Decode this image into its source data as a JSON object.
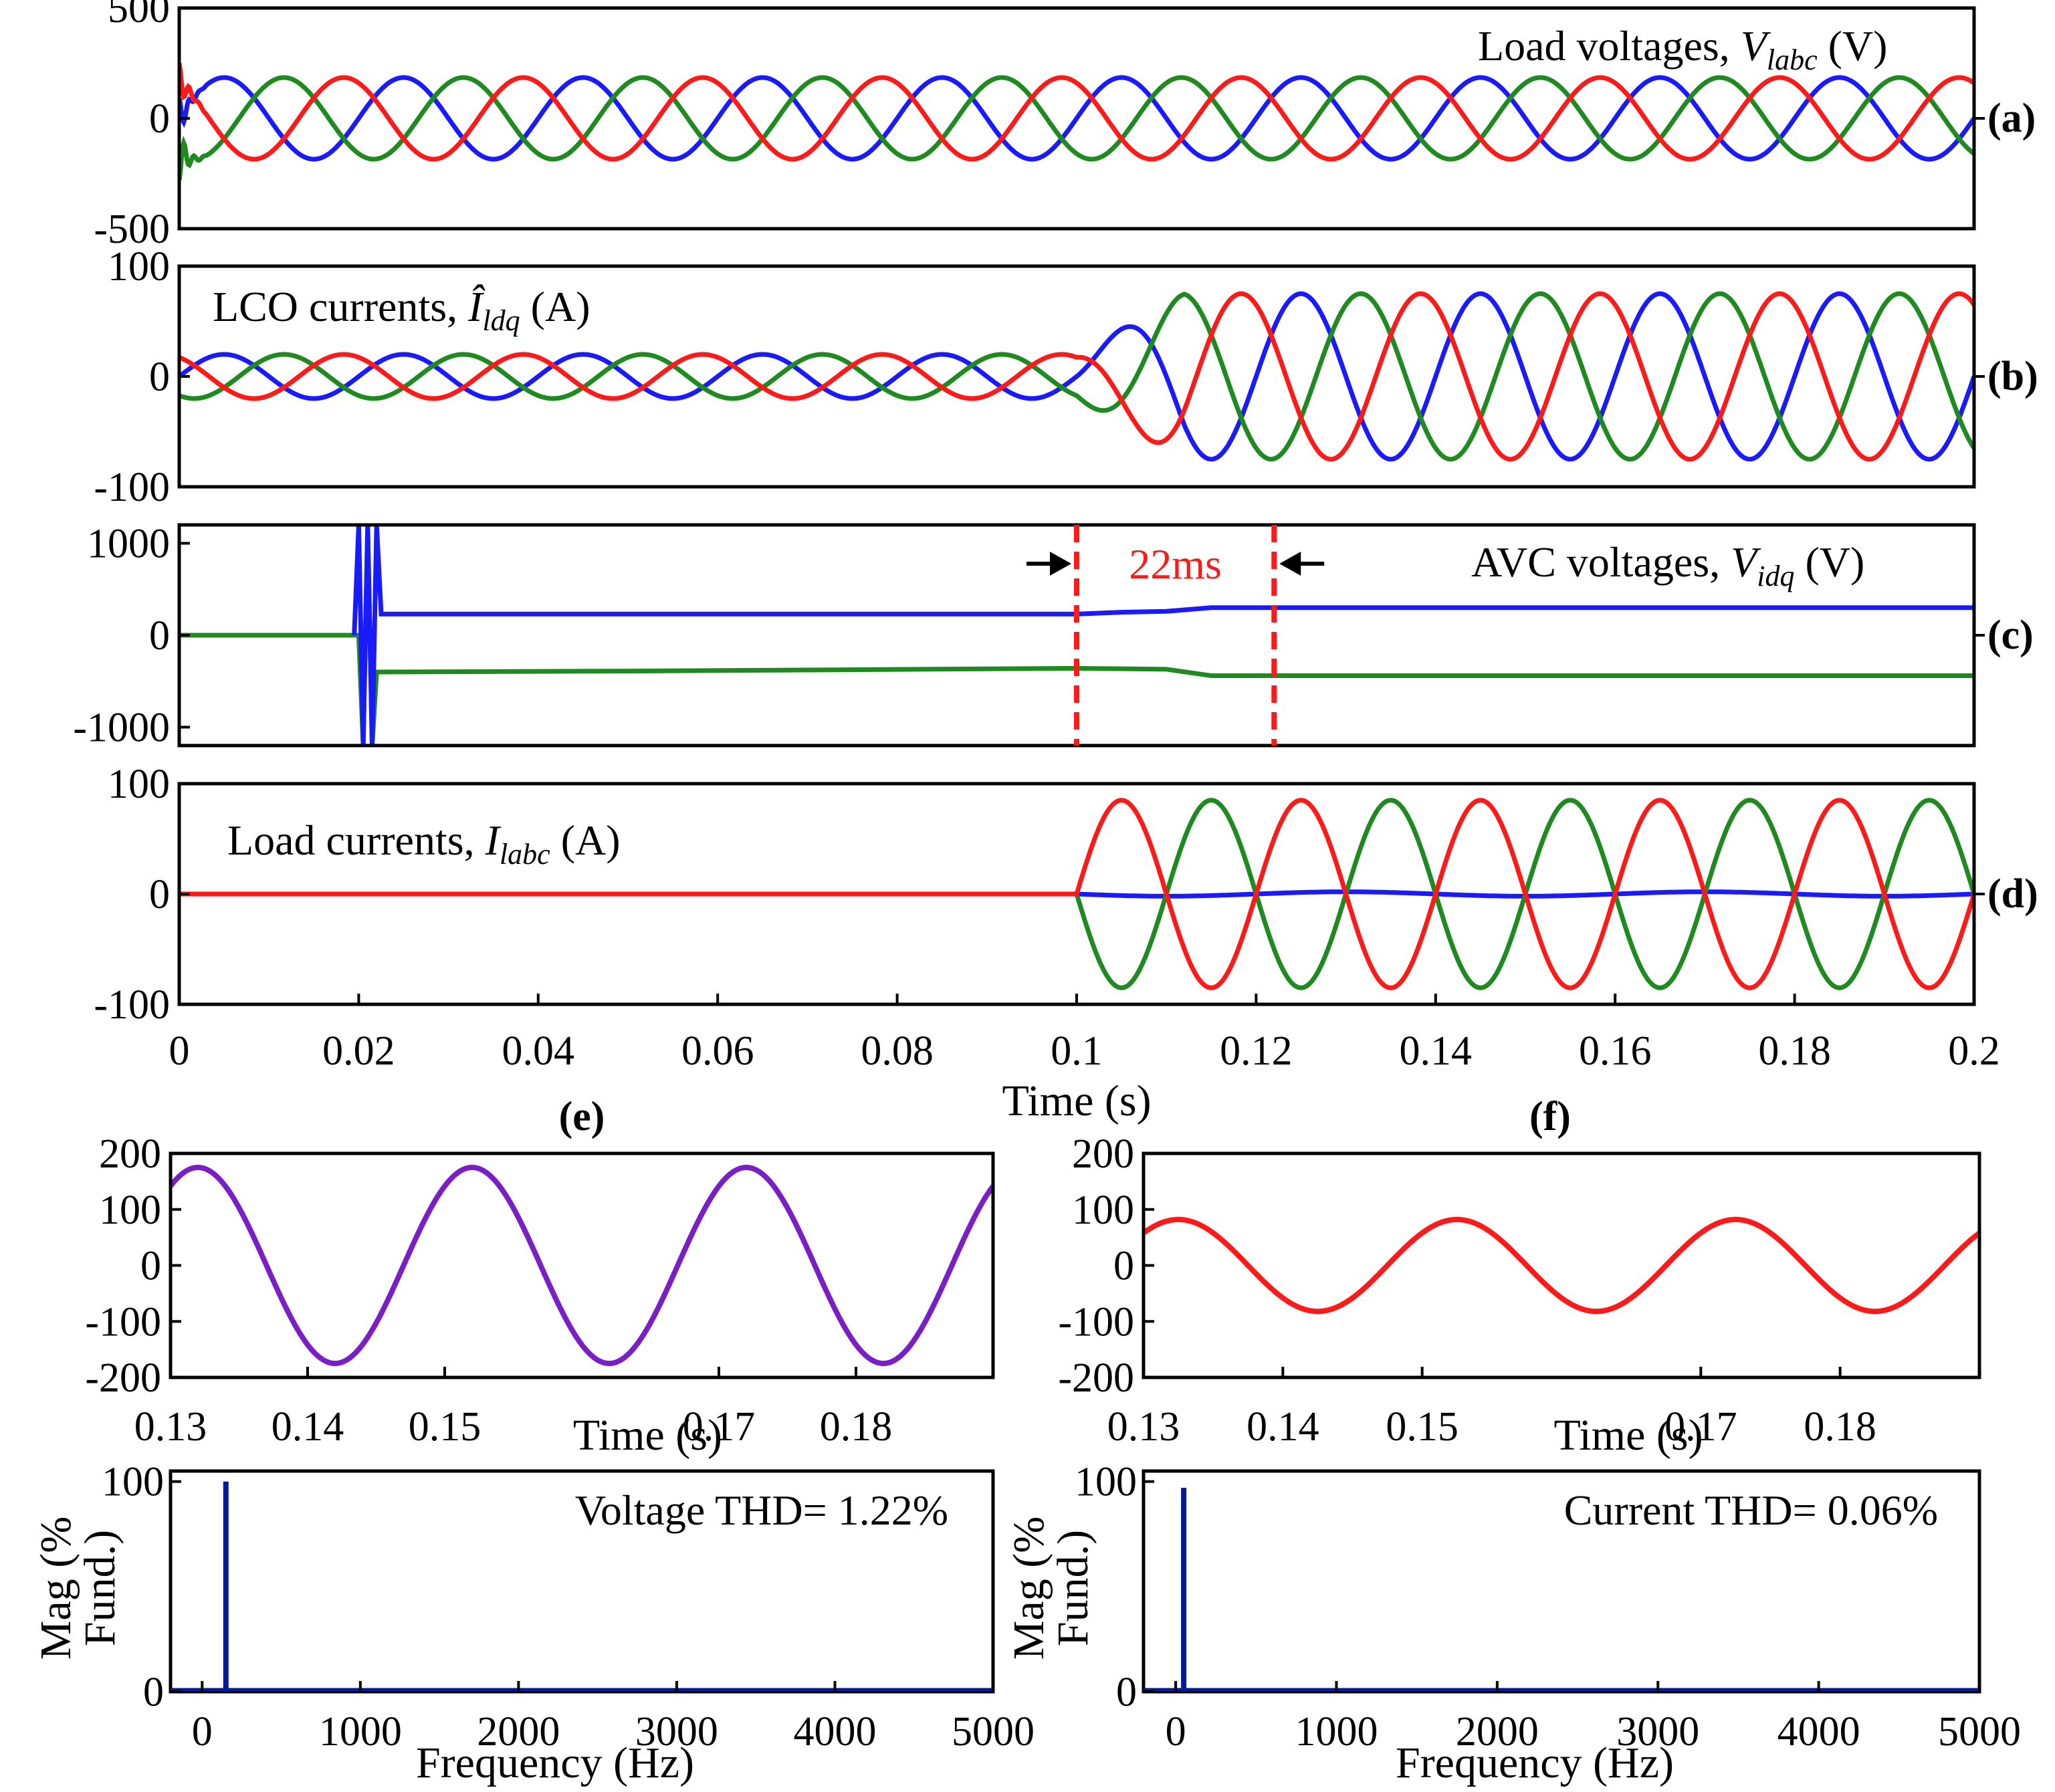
{
  "colors": {
    "phase_a": "#ff1a1a",
    "phase_b": "#1a1aff",
    "phase_c": "#1f8a1f",
    "purple": "#7a1fc8",
    "navy": "#001a99",
    "marker": "#ff1a1a"
  },
  "chart_data": [
    {
      "id": "a",
      "type": "line",
      "panel_label": "(a)",
      "annotation": {
        "prefix": "Load voltages, ",
        "sym": "V",
        "sub": "labc",
        "suffix": " (V)"
      },
      "xlim": [
        0,
        0.2
      ],
      "ylim": [
        -500,
        500
      ],
      "yticks": [
        {
          "v": 500,
          "t": "500"
        },
        {
          "v": 0,
          "t": "0"
        },
        {
          "v": -500,
          "t": "-500"
        }
      ],
      "series": [
        {
          "color_key": "phase_b",
          "amplitude": 185,
          "freq_hz": 50,
          "phase_deg": 0
        },
        {
          "color_key": "phase_c",
          "amplitude": 185,
          "freq_hz": 50,
          "phase_deg": -120
        },
        {
          "color_key": "phase_a",
          "amplitude": 185,
          "freq_hz": 50,
          "phase_deg": 120
        }
      ]
    },
    {
      "id": "b",
      "type": "line",
      "panel_label": "(b)",
      "annotation": {
        "prefix": "LCO currents, ",
        "sym": "Î",
        "sub": "ldq",
        "suffix": " (A)"
      },
      "xlim": [
        0,
        0.2
      ],
      "ylim": [
        -100,
        100
      ],
      "yticks": [
        {
          "v": 100,
          "t": "100"
        },
        {
          "v": 0,
          "t": "0"
        },
        {
          "v": -100,
          "t": "-100"
        }
      ],
      "step_time": 0.1,
      "amplitude_before": 20,
      "amplitude_after": 75,
      "series": [
        {
          "color_key": "phase_b",
          "freq_hz": 50,
          "phase_deg": 0
        },
        {
          "color_key": "phase_c",
          "freq_hz": 50,
          "phase_deg": -120
        },
        {
          "color_key": "phase_a",
          "freq_hz": 50,
          "phase_deg": 120
        }
      ]
    },
    {
      "id": "c",
      "type": "line",
      "panel_label": "(c)",
      "annotation": {
        "prefix": "AVC voltages, ",
        "sym": "V",
        "sub": "idq",
        "suffix": " (V)"
      },
      "xlim": [
        0,
        0.2
      ],
      "ylim": [
        -1200,
        1200
      ],
      "yticks": [
        {
          "v": 1000,
          "t": "1000"
        },
        {
          "v": 0,
          "t": "0"
        },
        {
          "v": -1000,
          "t": "-1000"
        }
      ],
      "series": [
        {
          "color_key": "phase_c",
          "points": [
            [
              0,
              0
            ],
            [
              0.0195,
              0
            ],
            [
              0.02,
              0
            ],
            [
              0.0205,
              -1200
            ],
            [
              0.021,
              1200
            ],
            [
              0.0215,
              -1200
            ],
            [
              0.022,
              -400
            ],
            [
              0.05,
              -390
            ],
            [
              0.1,
              -360
            ],
            [
              0.11,
              -370
            ],
            [
              0.115,
              -440
            ],
            [
              0.2,
              -440
            ]
          ]
        },
        {
          "color_key": "phase_b",
          "points": [
            [
              0.0195,
              0
            ],
            [
              0.02,
              1200
            ],
            [
              0.0205,
              -1200
            ],
            [
              0.021,
              1200
            ],
            [
              0.0215,
              -1200
            ],
            [
              0.022,
              1200
            ],
            [
              0.0225,
              230
            ],
            [
              0.05,
              230
            ],
            [
              0.1,
              230
            ],
            [
              0.105,
              250
            ],
            [
              0.11,
              260
            ],
            [
              0.115,
              300
            ],
            [
              0.2,
              300
            ]
          ]
        }
      ],
      "marker": {
        "t1": 0.1,
        "t2": 0.122,
        "label": "22ms"
      }
    },
    {
      "id": "d",
      "type": "line",
      "panel_label": "(d)",
      "annotation": {
        "prefix": "Load currents, ",
        "sym": "I",
        "sub": "labc",
        "suffix": " (A)"
      },
      "xlim": [
        0,
        0.2
      ],
      "ylim": [
        -100,
        100
      ],
      "yticks": [
        {
          "v": 100,
          "t": "100"
        },
        {
          "v": 0,
          "t": "0"
        },
        {
          "v": -100,
          "t": "-100"
        }
      ],
      "step_time": 0.1,
      "amplitude_after": 85,
      "series": [
        {
          "color_key": "phase_b",
          "flat_after": true
        },
        {
          "color_key": "phase_c",
          "freq_hz": 50,
          "phase_deg": 180
        },
        {
          "color_key": "phase_a",
          "freq_hz": 50,
          "phase_deg": 0
        }
      ],
      "xticks": [
        {
          "v": 0,
          "t": "0"
        },
        {
          "v": 0.02,
          "t": "0.02"
        },
        {
          "v": 0.04,
          "t": "0.04"
        },
        {
          "v": 0.06,
          "t": "0.06"
        },
        {
          "v": 0.08,
          "t": "0.08"
        },
        {
          "v": 0.1,
          "t": "0.1"
        },
        {
          "v": 0.12,
          "t": "0.12"
        },
        {
          "v": 0.14,
          "t": "0.14"
        },
        {
          "v": 0.16,
          "t": "0.16"
        },
        {
          "v": 0.18,
          "t": "0.18"
        },
        {
          "v": 0.2,
          "t": "0.2"
        }
      ],
      "xlabel": "Time (s)"
    },
    {
      "id": "e-wave",
      "type": "line",
      "title": "(e)",
      "xlim": [
        0.13,
        0.19
      ],
      "ylim": [
        -200,
        200
      ],
      "yticks": [
        {
          "v": 200,
          "t": "200"
        },
        {
          "v": 100,
          "t": "100"
        },
        {
          "v": 0,
          "t": "0"
        },
        {
          "v": -100,
          "t": "-100"
        },
        {
          "v": -200,
          "t": "-200"
        }
      ],
      "xticks": [
        {
          "v": 0.13,
          "t": "0.13"
        },
        {
          "v": 0.14,
          "t": "0.14"
        },
        {
          "v": 0.15,
          "t": "0.15"
        },
        {
          "v": 0.17,
          "t": "0.17"
        },
        {
          "v": 0.18,
          "t": "0.18"
        }
      ],
      "xlabel": "Time (s)",
      "series": [
        {
          "color_key": "purple",
          "amplitude": 175,
          "freq_hz": 50,
          "peak_time": 0.132
        }
      ]
    },
    {
      "id": "e-fft",
      "type": "bar",
      "xlim": [
        -200,
        5000
      ],
      "ylim": [
        0,
        105
      ],
      "yticks": [
        {
          "v": 100,
          "t": "100"
        },
        {
          "v": 0,
          "t": "0"
        }
      ],
      "xticks": [
        {
          "v": 0,
          "t": "0"
        },
        {
          "v": 1000,
          "t": "1000"
        },
        {
          "v": 2000,
          "t": "2000"
        },
        {
          "v": 3000,
          "t": "3000"
        },
        {
          "v": 4000,
          "t": "4000"
        },
        {
          "v": 5000,
          "t": "5000"
        }
      ],
      "xlabel": "Frequency (Hz)",
      "ylabel_lines": [
        "Mag (%",
        "Fund.)"
      ],
      "bars": [
        {
          "x": 150,
          "y": 100
        }
      ],
      "annotation_text": "Voltage THD= 1.22%"
    },
    {
      "id": "f-wave",
      "type": "line",
      "title": "(f)",
      "xlim": [
        0.13,
        0.19
      ],
      "ylim": [
        -200,
        200
      ],
      "yticks": [
        {
          "v": 200,
          "t": "200"
        },
        {
          "v": 100,
          "t": "100"
        },
        {
          "v": 0,
          "t": "0"
        },
        {
          "v": -100,
          "t": "-100"
        },
        {
          "v": -200,
          "t": "-200"
        }
      ],
      "xticks": [
        {
          "v": 0.13,
          "t": "0.13"
        },
        {
          "v": 0.14,
          "t": "0.14"
        },
        {
          "v": 0.15,
          "t": "0.15"
        },
        {
          "v": 0.17,
          "t": "0.17"
        },
        {
          "v": 0.18,
          "t": "0.18"
        }
      ],
      "xlabel": "Time (s)",
      "series": [
        {
          "color_key": "phase_a",
          "amplitude": 82,
          "freq_hz": 50,
          "peak_time": 0.1325
        }
      ]
    },
    {
      "id": "f-fft",
      "type": "bar",
      "xlim": [
        -200,
        5000
      ],
      "ylim": [
        0,
        105
      ],
      "yticks": [
        {
          "v": 100,
          "t": "100"
        },
        {
          "v": 0,
          "t": "0"
        }
      ],
      "xticks": [
        {
          "v": 0,
          "t": "0"
        },
        {
          "v": 1000,
          "t": "1000"
        },
        {
          "v": 2000,
          "t": "2000"
        },
        {
          "v": 3000,
          "t": "3000"
        },
        {
          "v": 4000,
          "t": "4000"
        },
        {
          "v": 5000,
          "t": "5000"
        }
      ],
      "xlabel": "Frequency (Hz)",
      "ylabel_lines": [
        "Mag (%",
        "Fund.)"
      ],
      "bars": [
        {
          "x": 50,
          "y": 97
        }
      ],
      "annotation_text": "Current THD= 0.06%"
    }
  ]
}
